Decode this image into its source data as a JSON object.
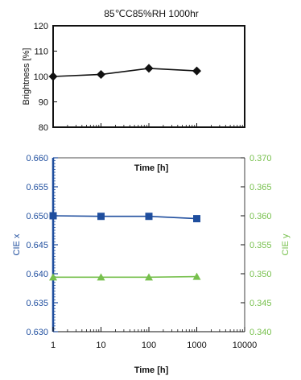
{
  "title": "85℃C85%RH  1000hr",
  "colors": {
    "axis": "#111111",
    "blue": "#1f4e9e",
    "green": "#77c04d",
    "marker_black": "#111111"
  },
  "chart_data": [
    {
      "type": "line",
      "title": "85℃C85%RH  1000hr",
      "xlabel": "",
      "ylabel": "Brightness [%]",
      "x_scale": "log",
      "xlim": [
        1,
        10000
      ],
      "ylim": [
        80,
        120
      ],
      "yticks": [
        "120",
        "110",
        "100",
        "90",
        "80"
      ],
      "x": [
        1,
        10,
        100,
        1000
      ],
      "series": [
        {
          "marker": "diamond",
          "color": "#111111",
          "values": [
            100,
            100.8,
            103.2,
            102.2
          ]
        }
      ],
      "grid": false,
      "legend": "none"
    },
    {
      "type": "line",
      "title": "",
      "annotation": "Time [h]",
      "xlabel": "Time [h]",
      "ylabel": "CIE x",
      "y2label": "CIE y",
      "x_scale": "log",
      "xlim": [
        1,
        10000
      ],
      "xticks": [
        "1",
        "10",
        "100",
        "1000",
        "10000"
      ],
      "ylim": [
        0.63,
        0.66
      ],
      "yticks": [
        "0.660",
        "0.655",
        "0.650",
        "0.645",
        "0.640",
        "0.635",
        "0.630"
      ],
      "y2lim": [
        0.34,
        0.37
      ],
      "y2ticks": [
        "0.370",
        "0.365",
        "0.360",
        "0.355",
        "0.350",
        "0.345",
        "0.340"
      ],
      "x": [
        1,
        10,
        100,
        1000
      ],
      "series": [
        {
          "axis": "left",
          "marker": "square",
          "color": "#1f4e9e",
          "values": [
            0.65,
            0.6499,
            0.6499,
            0.6495
          ]
        },
        {
          "axis": "right",
          "marker": "triangle",
          "color": "#77c04d",
          "values": [
            0.3494,
            0.3494,
            0.3494,
            0.3495
          ]
        }
      ],
      "grid": false,
      "legend": "none"
    }
  ]
}
